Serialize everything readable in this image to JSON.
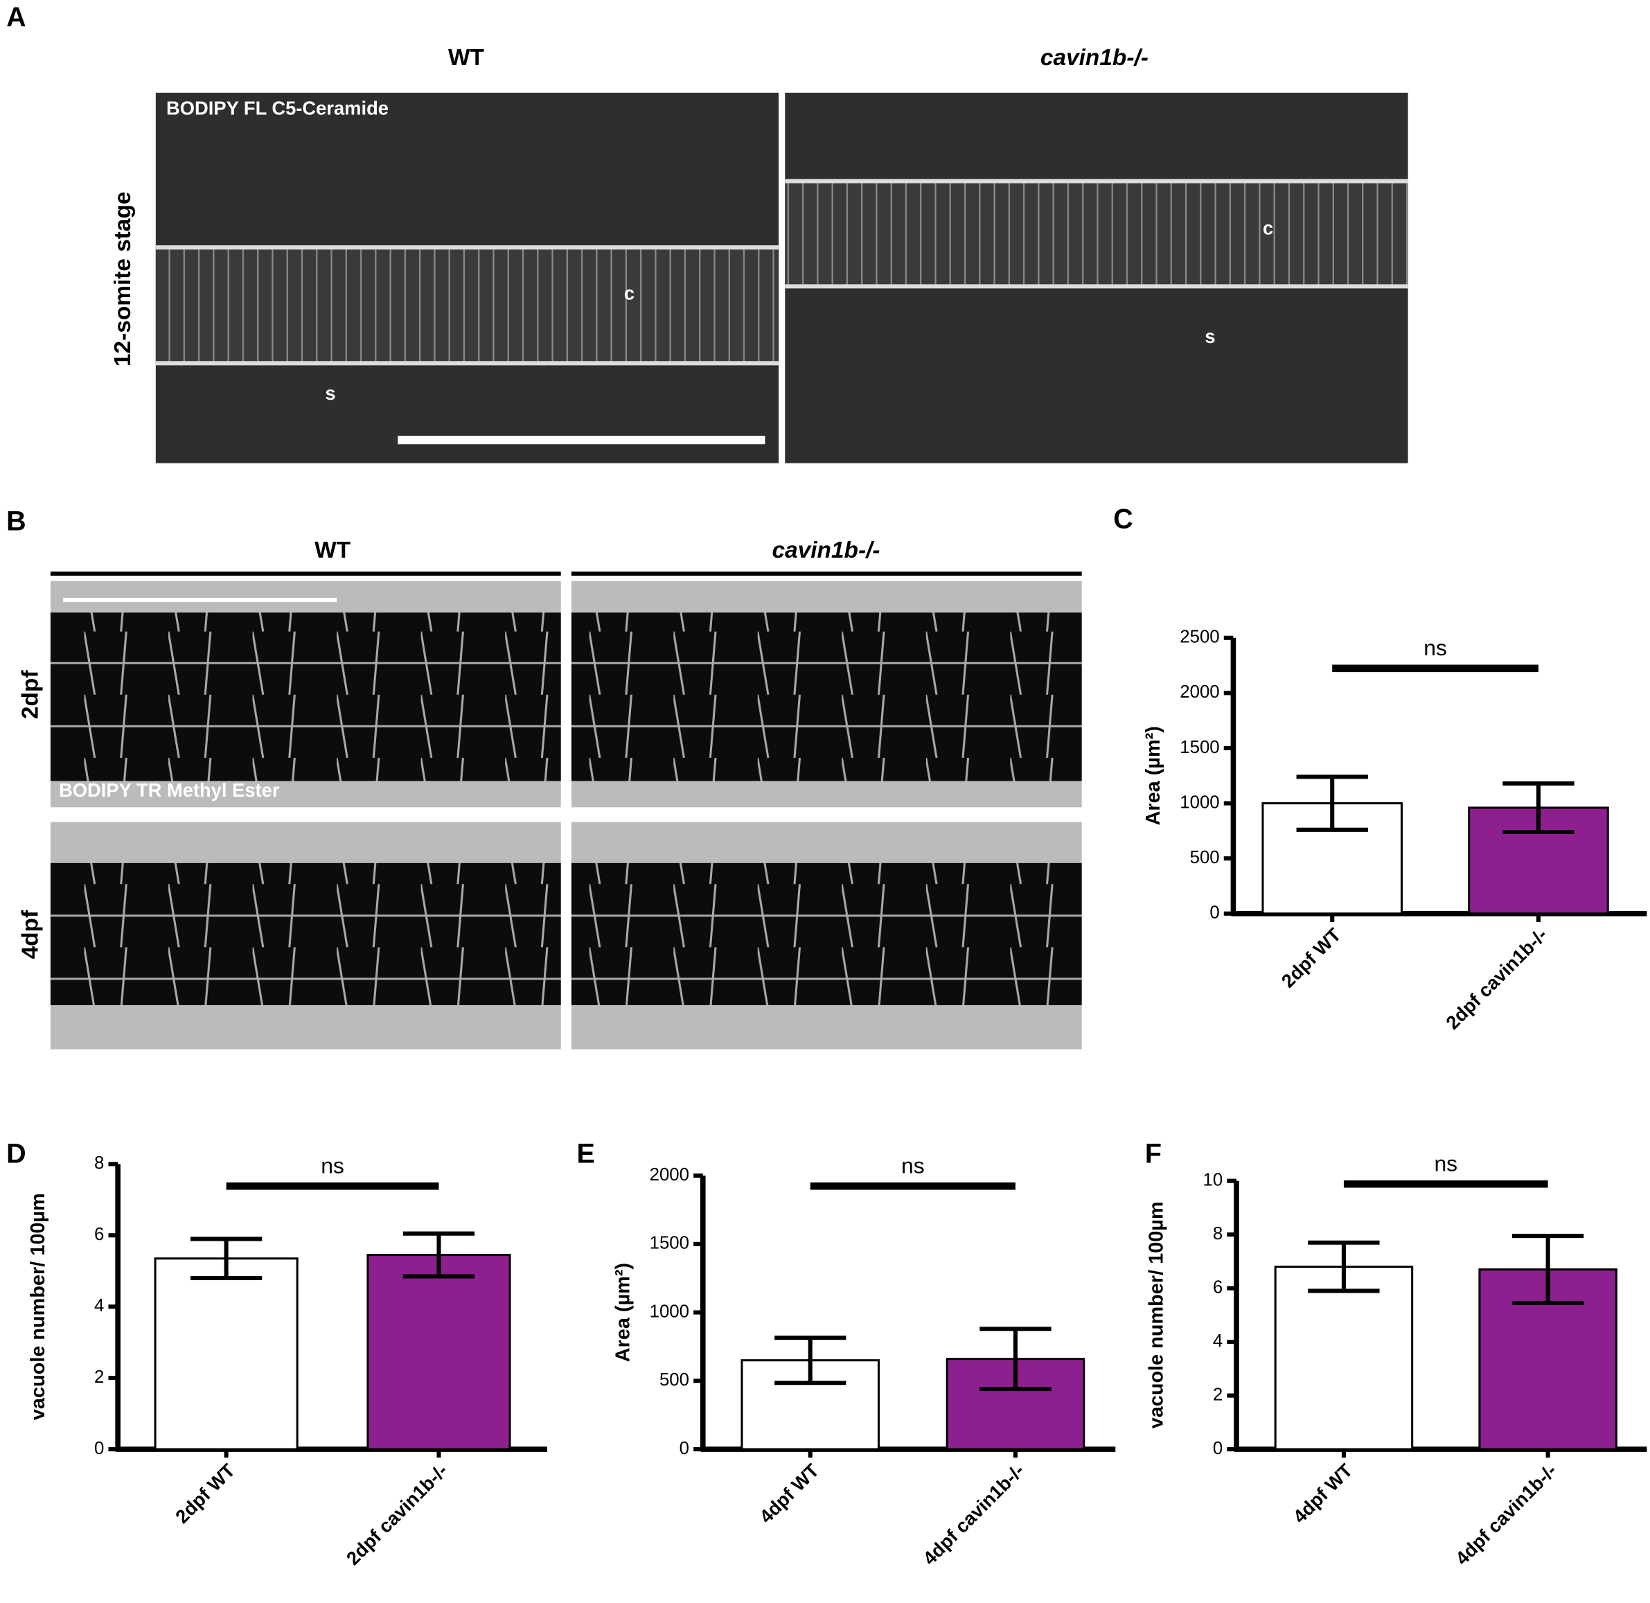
{
  "panel_labels": [
    "A",
    "B",
    "C",
    "D",
    "E",
    "F"
  ],
  "panel_a": {
    "columns": [
      "WT",
      "cavin1b-/-"
    ],
    "row": "12-somite stage",
    "stain": "BODIPY FL C5-Ceramide",
    "marks": [
      "c",
      "s",
      "c",
      "s"
    ]
  },
  "panel_b": {
    "columns": [
      "WT",
      "cavin1b-/-"
    ],
    "rows": [
      "2dpf",
      "4dpf"
    ],
    "stain": "BODIPY TR Methyl Ester"
  },
  "chart_data": [
    {
      "type": "bar",
      "y_label": "Area (µm²)",
      "categories": [
        "2dpf WT",
        "2dpf cavin1b-/-"
      ],
      "values": [
        1000,
        960
      ],
      "errors": [
        240,
        220
      ],
      "colors": [
        "#ffffff",
        "#8e1f8e"
      ],
      "ylim": [
        0,
        2500
      ],
      "yticks": [
        0,
        500,
        1000,
        1500,
        2000,
        2500
      ],
      "annotation": "ns"
    },
    {
      "type": "bar",
      "y_label": "vacuole number/ 100µm",
      "categories": [
        "2dpf WT",
        "2dpf cavin1b-/-"
      ],
      "values": [
        5.35,
        5.45
      ],
      "errors": [
        0.55,
        0.6
      ],
      "colors": [
        "#ffffff",
        "#8e1f8e"
      ],
      "ylim": [
        0,
        8
      ],
      "yticks": [
        0,
        2,
        4,
        6,
        8
      ],
      "annotation": "ns"
    },
    {
      "type": "bar",
      "y_label": "Area (µm²)",
      "categories": [
        "4dpf WT",
        "4dpf cavin1b-/-"
      ],
      "values": [
        650,
        660
      ],
      "errors": [
        165,
        220
      ],
      "colors": [
        "#ffffff",
        "#8e1f8e"
      ],
      "ylim": [
        0,
        2000
      ],
      "yticks": [
        0,
        500,
        1000,
        1500,
        2000
      ],
      "annotation": "ns"
    },
    {
      "type": "bar",
      "y_label": "vacuole number/ 100µm",
      "categories": [
        "4dpf WT",
        "4dpf cavin1b-/-"
      ],
      "values": [
        6.8,
        6.7
      ],
      "errors": [
        0.9,
        1.25
      ],
      "colors": [
        "#ffffff",
        "#8e1f8e"
      ],
      "ylim": [
        0,
        10
      ],
      "yticks": [
        0,
        2,
        4,
        6,
        8,
        10
      ],
      "annotation": "ns"
    }
  ]
}
